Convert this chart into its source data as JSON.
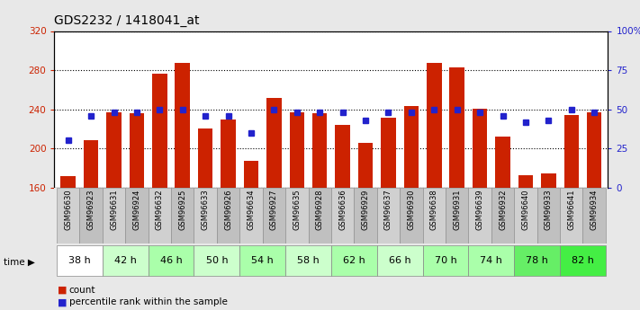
{
  "title": "GDS2232 / 1418041_at",
  "samples": [
    "GSM96630",
    "GSM96923",
    "GSM96631",
    "GSM96924",
    "GSM96632",
    "GSM96925",
    "GSM96633",
    "GSM96926",
    "GSM96634",
    "GSM96927",
    "GSM96635",
    "GSM96928",
    "GSM96636",
    "GSM96929",
    "GSM96637",
    "GSM96930",
    "GSM96638",
    "GSM96931",
    "GSM96639",
    "GSM96932",
    "GSM96640",
    "GSM96933",
    "GSM96641",
    "GSM96934"
  ],
  "time_groups": [
    {
      "label": "38 h",
      "indices": [
        0,
        1
      ],
      "color": "#ffffff"
    },
    {
      "label": "42 h",
      "indices": [
        2,
        3
      ],
      "color": "#ccffcc"
    },
    {
      "label": "46 h",
      "indices": [
        4,
        5
      ],
      "color": "#aaffaa"
    },
    {
      "label": "50 h",
      "indices": [
        6,
        7
      ],
      "color": "#ccffcc"
    },
    {
      "label": "54 h",
      "indices": [
        8,
        9
      ],
      "color": "#aaffaa"
    },
    {
      "label": "58 h",
      "indices": [
        10,
        11
      ],
      "color": "#ccffcc"
    },
    {
      "label": "62 h",
      "indices": [
        12,
        13
      ],
      "color": "#aaffaa"
    },
    {
      "label": "66 h",
      "indices": [
        14,
        15
      ],
      "color": "#ccffcc"
    },
    {
      "label": "70 h",
      "indices": [
        16,
        17
      ],
      "color": "#aaffaa"
    },
    {
      "label": "74 h",
      "indices": [
        18,
        19
      ],
      "color": "#aaffaa"
    },
    {
      "label": "78 h",
      "indices": [
        20,
        21
      ],
      "color": "#66ee66"
    },
    {
      "label": "82 h",
      "indices": [
        22,
        23
      ],
      "color": "#44ee44"
    }
  ],
  "counts": [
    172,
    208,
    237,
    236,
    276,
    287,
    220,
    230,
    187,
    252,
    237,
    236,
    224,
    206,
    231,
    243,
    287,
    283,
    241,
    212,
    173,
    174,
    234,
    237
  ],
  "percentile_ranks": [
    30,
    46,
    48,
    48,
    50,
    50,
    46,
    46,
    35,
    50,
    48,
    48,
    48,
    43,
    48,
    48,
    50,
    50,
    48,
    46,
    42,
    43,
    50,
    48
  ],
  "bar_color": "#cc2200",
  "dot_color": "#2222cc",
  "ymin": 160,
  "ymax": 320,
  "yticks": [
    160,
    200,
    240,
    280,
    320
  ],
  "right_yticks": [
    0,
    25,
    50,
    75,
    100
  ],
  "bg_color": "#e8e8e8",
  "plot_bg": "#ffffff",
  "title_fontsize": 10,
  "label_fontsize": 6,
  "time_fontsize": 8,
  "legend_items": [
    "count",
    "percentile rank within the sample"
  ],
  "legend_colors": [
    "#cc2200",
    "#2222cc"
  ],
  "sample_bg_even": "#d0d0d0",
  "sample_bg_odd": "#c0c0c0"
}
